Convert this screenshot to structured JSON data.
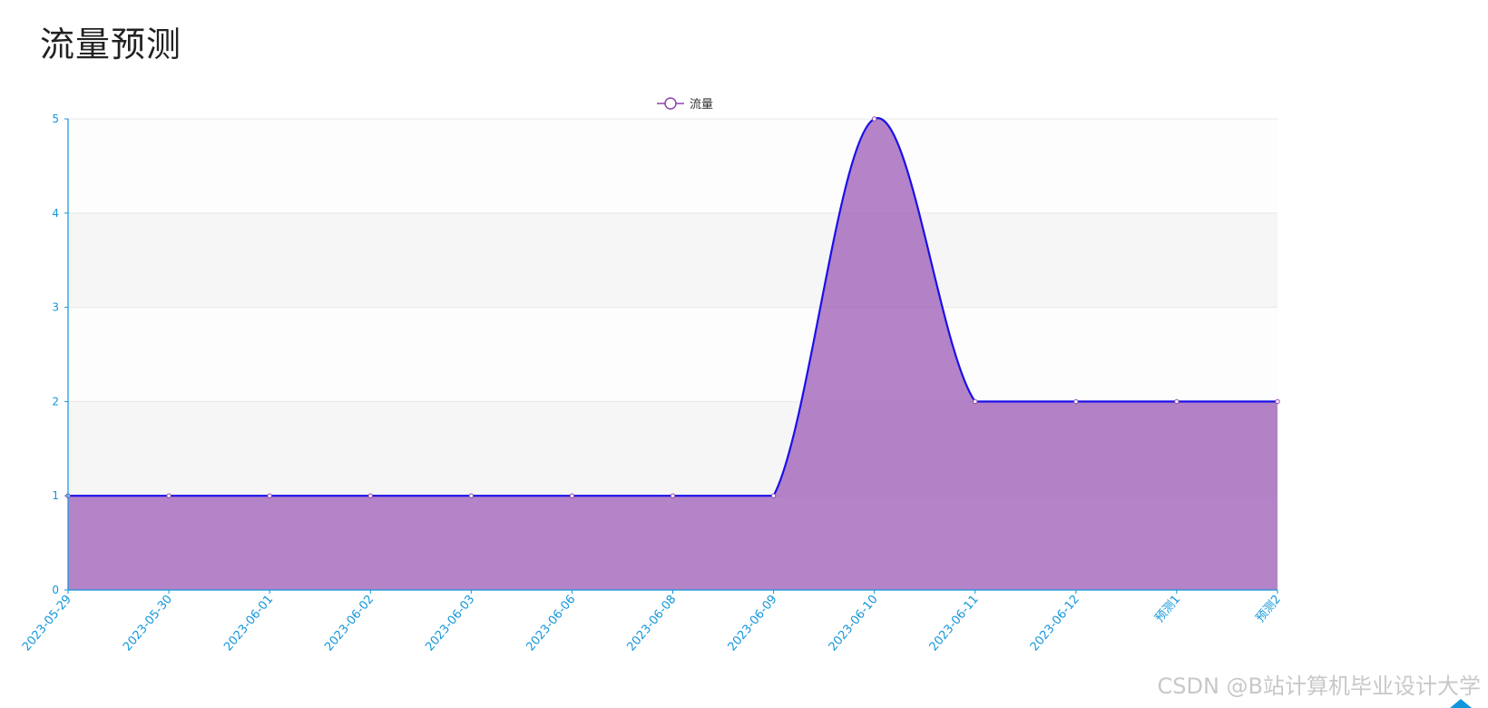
{
  "page": {
    "title": "流量预测",
    "watermark": "CSDN @B站计算机毕业设计大学"
  },
  "legend": {
    "label": "流量",
    "icon": "circle-line-icon"
  },
  "colors": {
    "line": "#1a10e8",
    "area": "rgba(155, 89, 182, 0.75)",
    "marker_stroke": "#8e44ad",
    "axis": "#1296db",
    "axis_label": "#1296db",
    "grid_band": "#f6f6f6",
    "grid_line": "#e8e8e8",
    "title": "#222222"
  },
  "chart_data": {
    "type": "area",
    "title": "流量预测",
    "xlabel": "",
    "ylabel": "",
    "categories": [
      "2023-05-29",
      "2023-05-30",
      "2023-06-01",
      "2023-06-02",
      "2023-06-03",
      "2023-06-06",
      "2023-06-08",
      "2023-06-09",
      "2023-06-10",
      "2023-06-11",
      "2023-06-12",
      "预测1",
      "预测2"
    ],
    "series": [
      {
        "name": "流量",
        "values": [
          1,
          1,
          1,
          1,
          1,
          1,
          1,
          1,
          5,
          2,
          2,
          2,
          2
        ]
      }
    ],
    "ylim": [
      0,
      5
    ],
    "yticks": [
      0,
      1,
      2,
      3,
      4,
      5
    ],
    "grid": true,
    "smooth": true,
    "legend_position": "top-center",
    "xtick_rotation": -50
  }
}
